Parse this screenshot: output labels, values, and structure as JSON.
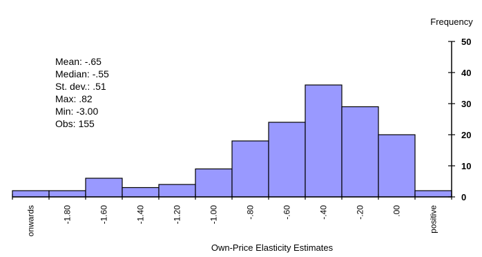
{
  "chart_data": {
    "type": "bar",
    "xlabel": "Own-Price Elasticity Estimates",
    "ylabel": "Frequency",
    "ylim": [
      0,
      50
    ],
    "yticks": [
      0,
      10,
      20,
      30,
      40,
      50
    ],
    "categories": [
      "onwards",
      "-1.80",
      "-1.60",
      "-1.40",
      "-1.20",
      "-1.00",
      "-.80",
      "-.60",
      "-.40",
      "-.20",
      ".00",
      "positive"
    ],
    "values": [
      2,
      2,
      6,
      3,
      4,
      9,
      18,
      24,
      36,
      29,
      20,
      2
    ],
    "bar_color": "#9999ff",
    "grid": false,
    "y_axis_position": "right",
    "stats": [
      "Mean: -.65",
      "Median: -.55",
      "St. dev.: .51",
      "Max: .82",
      "Min: -3.00",
      "Obs: 155"
    ]
  }
}
